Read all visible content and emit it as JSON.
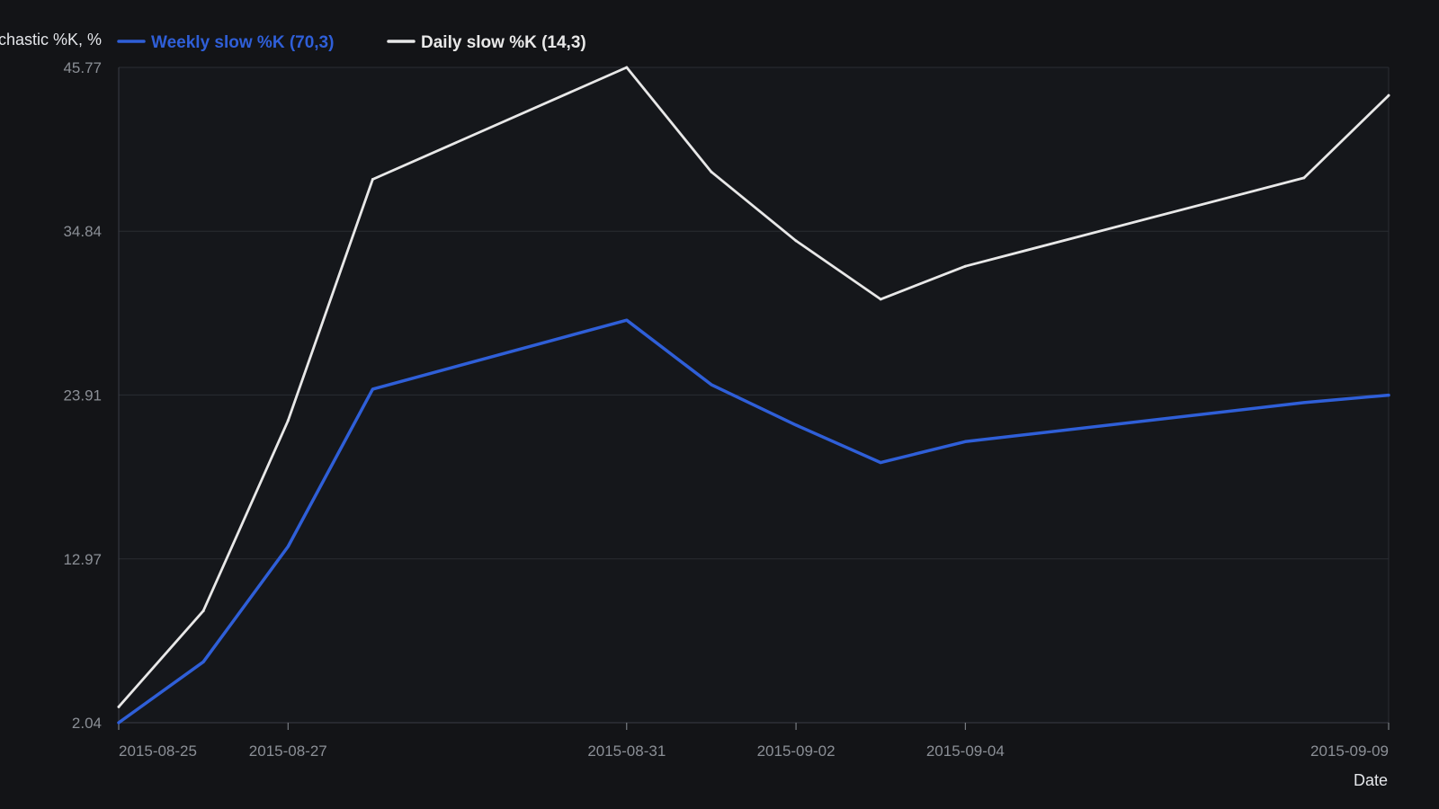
{
  "chart_data": {
    "type": "line",
    "ylabel": "Stochastic %K, %",
    "xlabel": "Date",
    "ylim": [
      2.04,
      45.77
    ],
    "y_ticks": [
      "45.77",
      "34.84",
      "23.91",
      "12.97",
      "2.04"
    ],
    "x_ticks": [
      "2015-08-25",
      "2015-08-27",
      "2015-08-31",
      "2015-09-02",
      "2015-09-04",
      "2015-09-09"
    ],
    "x": [
      "2015-08-25",
      "2015-08-26",
      "2015-08-27",
      "2015-08-28",
      "2015-08-31",
      "2015-09-01",
      "2015-09-02",
      "2015-09-03",
      "2015-09-04",
      "2015-09-08",
      "2015-09-09"
    ],
    "series": [
      {
        "name": "Weekly slow %K (70,3)",
        "color": "#2f5fd8",
        "values": [
          2.04,
          6.1,
          13.8,
          24.3,
          28.9,
          24.6,
          21.9,
          19.4,
          20.8,
          23.4,
          23.9
        ]
      },
      {
        "name": "Daily slow %K (14,3)",
        "color": "#e8e8e8",
        "values": [
          3.1,
          9.5,
          22.2,
          38.3,
          45.77,
          38.8,
          34.2,
          30.3,
          32.5,
          38.4,
          43.9
        ]
      }
    ],
    "legend_position": "top-left",
    "grid": true
  }
}
